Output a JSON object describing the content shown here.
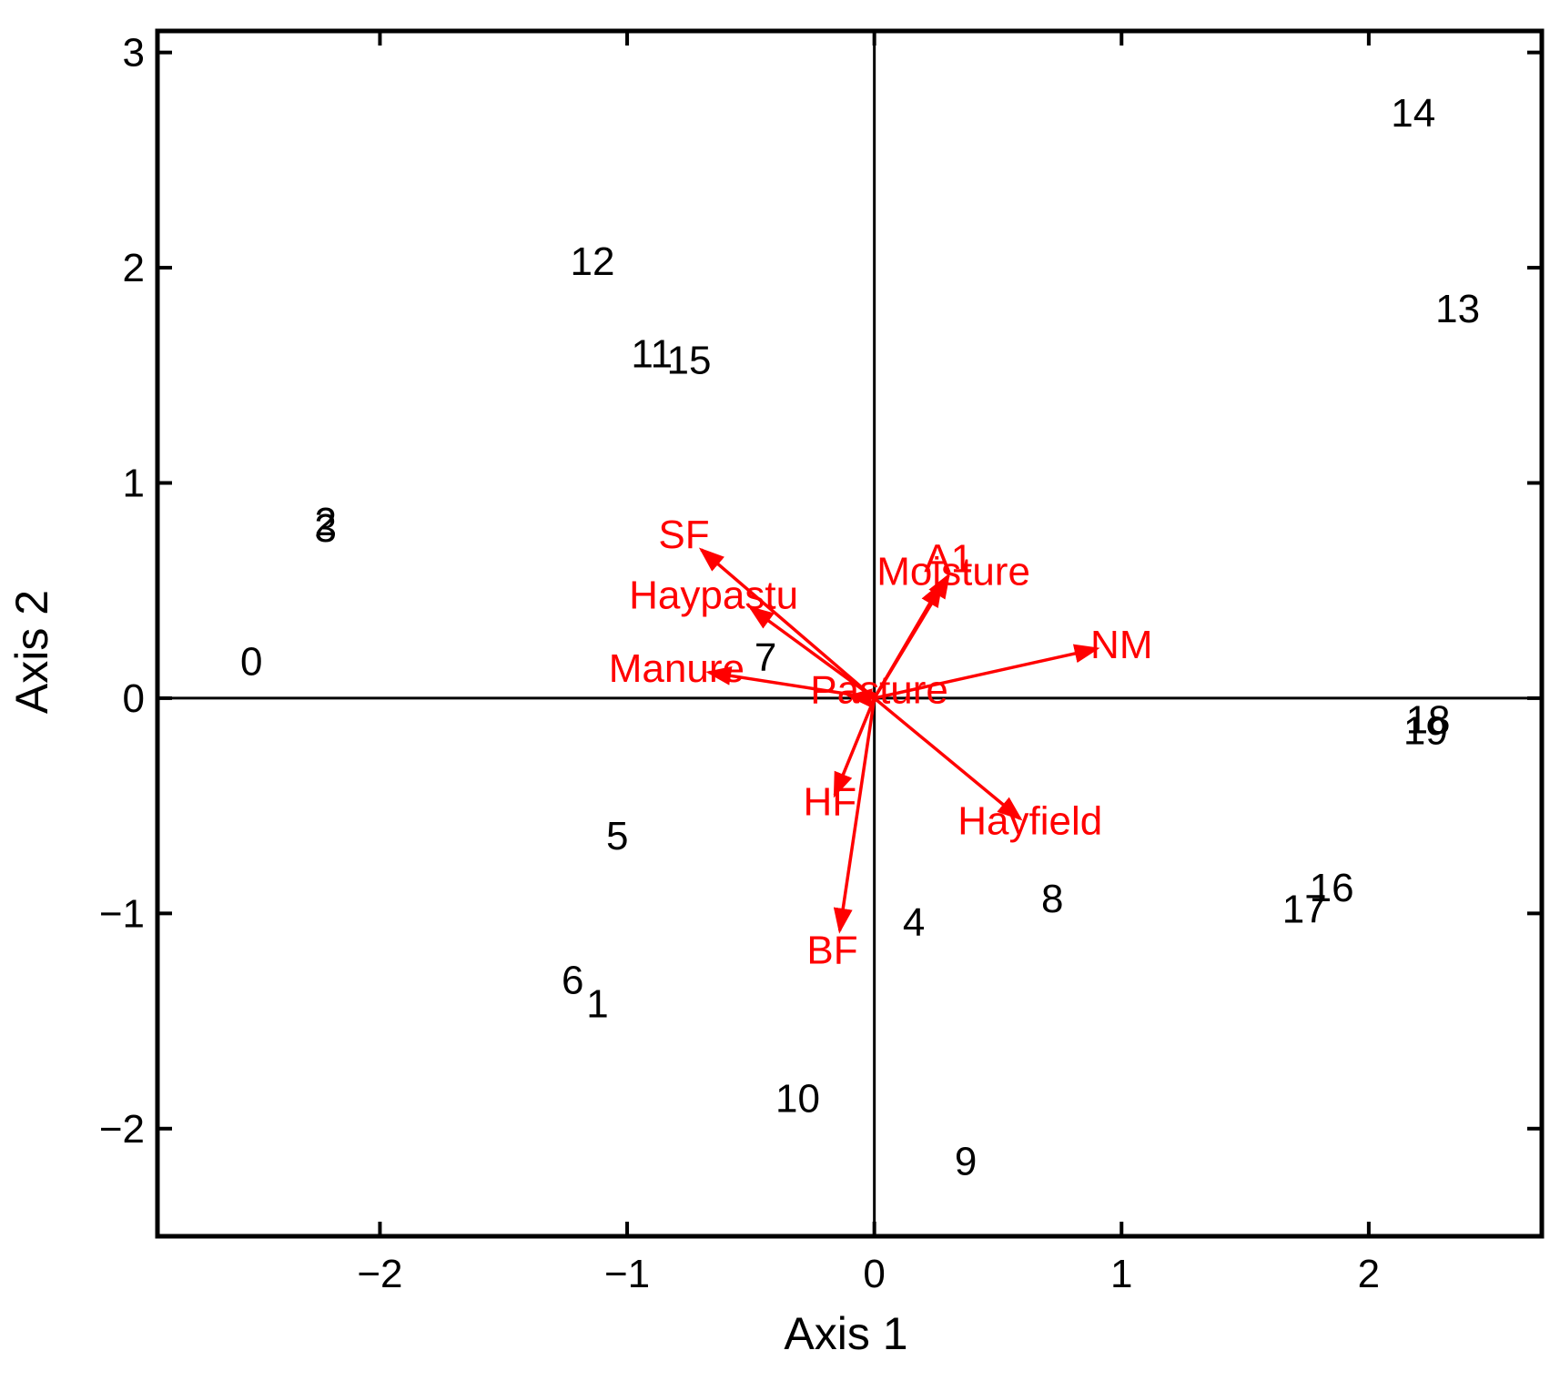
{
  "chart_data": {
    "type": "scatter",
    "title": "",
    "xlabel": "Axis 1",
    "ylabel": "Axis 2",
    "xlim": [
      -2.9,
      2.7
    ],
    "ylim": [
      -2.5,
      3.1
    ],
    "xticks": [
      -2,
      -1,
      0,
      1,
      2
    ],
    "yticks": [
      -2,
      -1,
      0,
      1,
      2,
      3
    ],
    "xtick_labels": [
      "−2",
      "−1",
      "0",
      "1",
      "2"
    ],
    "ytick_labels": [
      "−2",
      "−1",
      "0",
      "1",
      "2",
      "3"
    ],
    "grid": false,
    "zero_lines": true,
    "arrow_color": "#ff0000",
    "site_color": "#000000",
    "sites": [
      {
        "label": "0",
        "x": -2.52,
        "y": 0.17
      },
      {
        "label": "1",
        "x": -1.12,
        "y": -1.42
      },
      {
        "label": "2",
        "x": -2.22,
        "y": 0.82
      },
      {
        "label": "3",
        "x": -2.22,
        "y": 0.79
      },
      {
        "label": "4",
        "x": 0.16,
        "y": -1.04
      },
      {
        "label": "5",
        "x": -1.04,
        "y": -0.64
      },
      {
        "label": "6",
        "x": -1.22,
        "y": -1.31
      },
      {
        "label": "7",
        "x": -0.44,
        "y": 0.19
      },
      {
        "label": "8",
        "x": 0.72,
        "y": -0.93
      },
      {
        "label": "9",
        "x": 0.37,
        "y": -2.15
      },
      {
        "label": "10",
        "x": -0.31,
        "y": -1.86
      },
      {
        "label": "11",
        "x": -0.9,
        "y": 1.6
      },
      {
        "label": "12",
        "x": -1.14,
        "y": 2.03
      },
      {
        "label": "13",
        "x": 2.36,
        "y": 1.81
      },
      {
        "label": "14",
        "x": 2.18,
        "y": 2.72
      },
      {
        "label": "15",
        "x": -0.75,
        "y": 1.57
      },
      {
        "label": "16",
        "x": 1.85,
        "y": -0.88
      },
      {
        "label": "17",
        "x": 1.74,
        "y": -0.98
      },
      {
        "label": "18",
        "x": 2.24,
        "y": -0.1
      },
      {
        "label": "19",
        "x": 2.23,
        "y": -0.15
      }
    ],
    "vectors": [
      {
        "name": "SF",
        "x": -0.7,
        "y": 0.69,
        "label_x": -0.77,
        "label_y": 0.76
      },
      {
        "name": "Haypastu",
        "x": -0.5,
        "y": 0.42,
        "label_x": -0.65,
        "label_y": 0.48
      },
      {
        "name": "Manure",
        "x": -0.67,
        "y": 0.12,
        "label_x": -0.8,
        "label_y": 0.14
      },
      {
        "name": "Pasture",
        "x": -0.1,
        "y": 0.01,
        "label_x": 0.02,
        "label_y": 0.04
      },
      {
        "name": "A1",
        "x": 0.3,
        "y": 0.57,
        "label_x": 0.3,
        "label_y": 0.65
      },
      {
        "name": "Moisture",
        "x": 0.27,
        "y": 0.53,
        "label_x": 0.32,
        "label_y": 0.59
      },
      {
        "name": "NM",
        "x": 0.9,
        "y": 0.23,
        "label_x": 1.0,
        "label_y": 0.25
      },
      {
        "name": "Hayfield",
        "x": 0.59,
        "y": -0.56,
        "label_x": 0.63,
        "label_y": -0.57
      },
      {
        "name": "HF",
        "x": -0.16,
        "y": -0.45,
        "label_x": -0.18,
        "label_y": -0.48
      },
      {
        "name": "BF",
        "x": -0.14,
        "y": -1.08,
        "label_x": -0.17,
        "label_y": -1.17
      }
    ]
  }
}
